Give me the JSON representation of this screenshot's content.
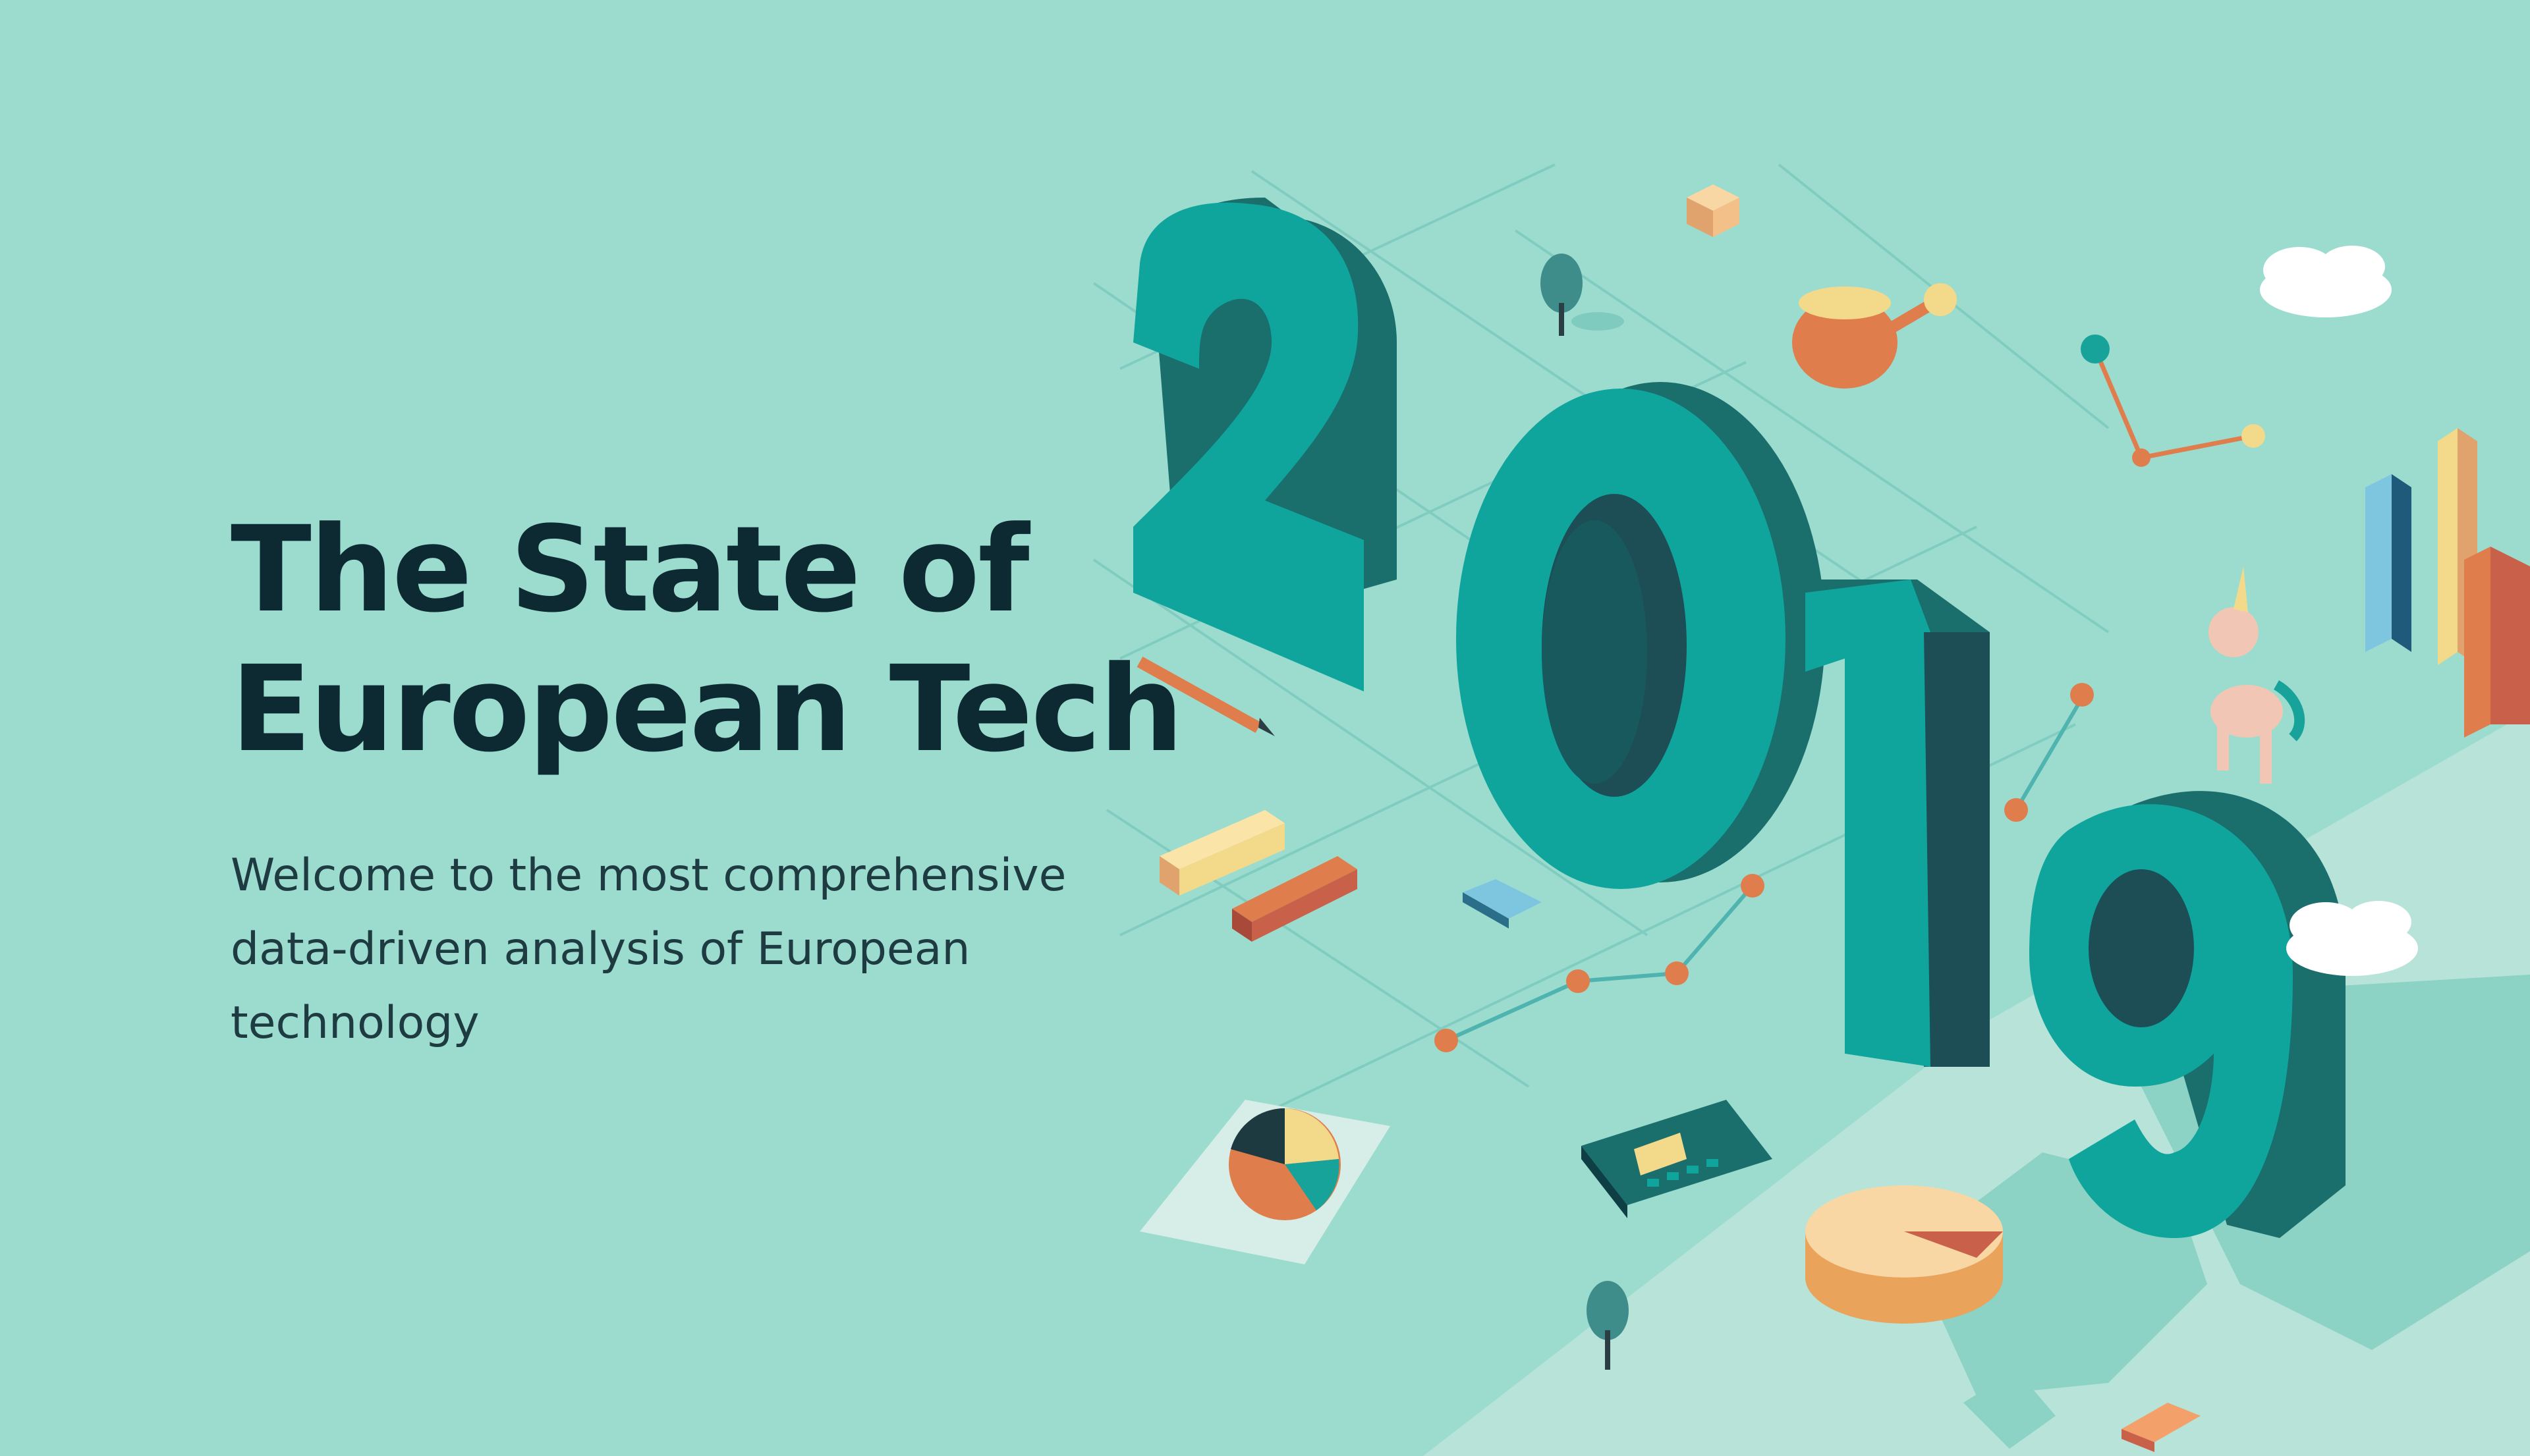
{
  "hero": {
    "title_line1": "The State of",
    "title_line2": "European Tech",
    "subtitle": "Welcome to the most comprehensive data-driven analysis of European technology"
  },
  "illustration": {
    "year_digits": [
      "2",
      "0",
      "1",
      "9"
    ],
    "icons": [
      "tree-icon",
      "cube-icon",
      "watering-can-icon",
      "cloud-icon",
      "unicorn-icon",
      "pencil-icon",
      "bar-blocks-icon",
      "car-icon",
      "pie-chart-paper-icon",
      "calculator-icon",
      "cheese-wheel-icon",
      "line-chart-nodes-icon",
      "europe-map-icon",
      "bar-chart-columns-icon"
    ]
  },
  "colors": {
    "background": "#9cdccf",
    "title": "#0d2a33",
    "subtitle": "#1f3b42",
    "digit_face": "#0fa59d",
    "digit_side": "#1a6e6c",
    "digit_shadow": "#1d4e55",
    "accent_orange": "#e07d4c",
    "accent_yellow": "#f3d98a",
    "accent_red": "#c9604a"
  }
}
